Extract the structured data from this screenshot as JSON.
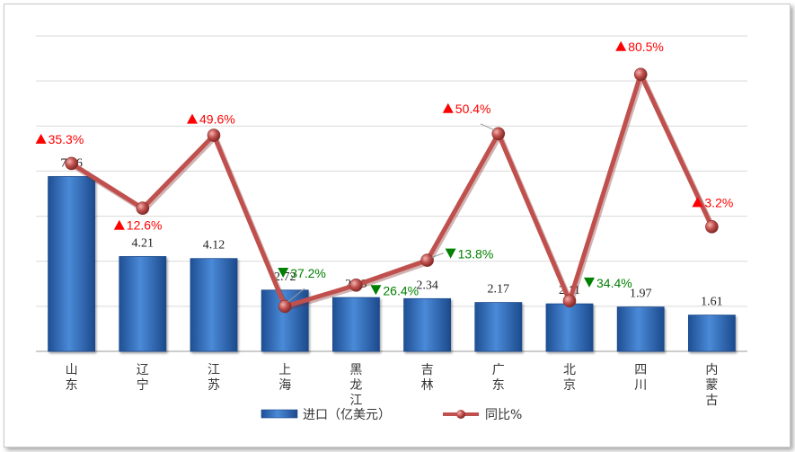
{
  "chart_data": {
    "type": "bar+line",
    "categories": [
      "山东",
      "辽宁",
      "江苏",
      "上海",
      "黑龙江",
      "吉林",
      "广东",
      "北京",
      "四川",
      "内蒙古"
    ],
    "series": [
      {
        "name": "进口（亿美元）",
        "type": "bar",
        "axis": "primary",
        "values": [
          7.76,
          4.21,
          4.12,
          2.72,
          2.39,
          2.34,
          2.17,
          2.11,
          1.97,
          1.61
        ],
        "labels": [
          "7.76",
          "4.21",
          "4.12",
          "2.72",
          "2.39",
          "2.34",
          "2.17",
          "2.11",
          "1.97",
          "1.61"
        ],
        "color": "#3a78c8"
      },
      {
        "name": "同比%",
        "type": "line",
        "axis": "secondary",
        "values": [
          35.3,
          12.6,
          49.6,
          -37.2,
          -26.4,
          -13.8,
          50.4,
          -34.4,
          80.5,
          3.2
        ],
        "labels": [
          "35.3%",
          "12.6%",
          "49.6%",
          "37.2%",
          "26.4%",
          "13.8%",
          "50.4%",
          "34.4%",
          "80.5%",
          "3.2%"
        ],
        "directions": [
          "up",
          "up",
          "up",
          "down",
          "down",
          "down",
          "up",
          "down",
          "up",
          "up"
        ],
        "color": "#c0504d"
      }
    ],
    "primary_ylim": [
      0,
      14
    ],
    "secondary_ylim": [
      -60,
      100
    ],
    "grid": true,
    "legend": "bottom",
    "up_color": "#ff0000",
    "down_color": "#008000"
  }
}
